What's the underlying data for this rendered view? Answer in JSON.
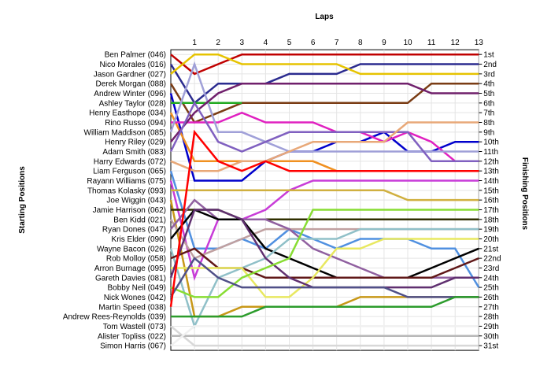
{
  "chart_data": {
    "type": "line",
    "x_title": "Laps",
    "left_title": "Starting Positions",
    "right_title": "Finishing Positions",
    "laps": [
      1,
      2,
      3,
      4,
      5,
      6,
      7,
      8,
      9,
      10,
      11,
      12,
      13
    ],
    "drivers": [
      "Ben Palmer (046)",
      "Nico Morales (016)",
      "Jason Gardner (027)",
      "Derek Morgan (088)",
      "Andrew Winter (096)",
      "Ashley Taylor (028)",
      "Henry Easthope (034)",
      "Rino Russo (094)",
      "William Maddison (085)",
      "Henry Riley (029)",
      "Adam Smith (083)",
      "Harry Edwards (072)",
      "Liam Ferguson (065)",
      "Rayann Williams (075)",
      "Thomas Kolasky (093)",
      "Joe Wiggin (043)",
      "Jamie Harrison (062)",
      "Ben Kidd (021)",
      "Ryan Dones (047)",
      "Kris Elder (090)",
      "Wayne Bacon (026)",
      "Rob Molloy (058)",
      "Arron Burnage (095)",
      "Gareth Davies (081)",
      "Bobby Neil (049)",
      "Nick Wones (042)",
      "Martin Speed (038)",
      "Andrew Rees-Reynolds (039)",
      "Tom Wastell (073)",
      "Alister Topliss (022)",
      "Simon Harris (067)"
    ],
    "finishing_labels": [
      "1st",
      "2nd",
      "3rd",
      "4th",
      "5th",
      "6th",
      "7th",
      "8th",
      "9th",
      "10th",
      "11th",
      "12th",
      "13th",
      "14th",
      "15th",
      "16th",
      "17th",
      "18th",
      "19th",
      "20th",
      "21st",
      "22nd",
      "23rd",
      "24th",
      "25th",
      "26th",
      "27th",
      "28th",
      "29th",
      "30th",
      "31st"
    ],
    "series": [
      {
        "color": "#c00000",
        "positions": [
          1,
          3,
          2,
          1,
          1,
          1,
          1,
          1,
          1,
          1,
          1,
          1,
          1,
          1
        ]
      },
      {
        "color": "#2b2b8f",
        "positions": [
          2,
          6,
          4,
          4,
          4,
          3,
          3,
          3,
          2,
          2,
          2,
          2,
          2,
          2
        ]
      },
      {
        "color": "#e6c300",
        "positions": [
          3,
          1,
          1,
          2,
          2,
          2,
          2,
          2,
          3,
          3,
          3,
          3,
          3,
          3
        ]
      },
      {
        "color": "#7a3c14",
        "positions": [
          4,
          8,
          7,
          6,
          6,
          6,
          6,
          6,
          6,
          6,
          6,
          4,
          4,
          4
        ]
      },
      {
        "color": "#0000cc",
        "positions": [
          5,
          14,
          14,
          14,
          12,
          11,
          11,
          10,
          10,
          9,
          11,
          11,
          10,
          10
        ]
      },
      {
        "color": "#22aa22",
        "positions": [
          6,
          6,
          6,
          6
        ]
      },
      {
        "color": "#f09020",
        "positions": [
          7,
          12,
          12,
          12,
          12,
          12,
          12,
          13,
          13,
          13,
          13,
          13,
          13,
          13
        ]
      },
      {
        "color": "#e020c0",
        "positions": [
          8,
          8,
          8,
          7,
          8,
          8,
          8,
          9,
          9,
          10,
          9,
          10,
          12,
          12
        ]
      },
      {
        "color": "#a0a0d8",
        "positions": [
          9,
          2,
          9,
          9,
          10,
          11,
          11,
          11,
          11,
          11,
          11,
          11,
          11,
          11
        ]
      },
      {
        "color": "#70206c",
        "positions": [
          10,
          7,
          5,
          4,
          4,
          4,
          4,
          4,
          4,
          4,
          4,
          5,
          5,
          5
        ]
      },
      {
        "color": "#8060c0",
        "positions": [
          11,
          6,
          10,
          11,
          10,
          9,
          9,
          9,
          9,
          9,
          9,
          12,
          12,
          12
        ]
      },
      {
        "color": "#e8a878",
        "positions": [
          12,
          13,
          13,
          12,
          12,
          11,
          10,
          10,
          10,
          10,
          8,
          8,
          8,
          8
        ]
      },
      {
        "color": "#5090e0",
        "positions": [
          13,
          21,
          21,
          20,
          21,
          19,
          20,
          21,
          20,
          20,
          20,
          21,
          21,
          25
        ]
      },
      {
        "color": "#c83cd8",
        "positions": [
          14,
          24,
          18,
          18,
          17,
          15,
          14,
          14,
          14,
          14,
          14,
          14,
          14,
          14
        ]
      },
      {
        "color": "#d0b040",
        "positions": [
          15,
          15,
          15,
          15,
          15,
          15,
          15,
          15,
          15,
          15,
          16,
          16,
          16,
          16
        ]
      },
      {
        "color": "#c89818",
        "positions": [
          16,
          28,
          28,
          27,
          27,
          27,
          27,
          27,
          26,
          26,
          26,
          26,
          26,
          26
        ]
      },
      {
        "color": "#303000",
        "positions": [
          17,
          17,
          17,
          18,
          18,
          18,
          18,
          18,
          18,
          18,
          18,
          18,
          18,
          18
        ]
      },
      {
        "color": "#c0a0a0",
        "positions": [
          18,
          22,
          21,
          20,
          19,
          19,
          19,
          19,
          19,
          19,
          19,
          19,
          19,
          19
        ]
      },
      {
        "color": "#9060a0",
        "positions": [
          19,
          16,
          18,
          18,
          18,
          19,
          21,
          22,
          23,
          24,
          24,
          24,
          24,
          24
        ]
      },
      {
        "color": "#000000",
        "positions": [
          20,
          17,
          18,
          18,
          21,
          22,
          23,
          24,
          24,
          24,
          24,
          23,
          22,
          21
        ]
      },
      {
        "color": "#90c0c8",
        "positions": [
          21,
          29,
          24,
          23,
          22,
          20,
          20,
          20,
          19,
          19,
          19,
          19,
          19,
          19
        ]
      },
      {
        "color": "#601818",
        "positions": [
          22,
          21,
          23,
          23,
          24,
          24,
          24,
          24,
          24,
          24,
          24,
          24,
          23,
          22
        ]
      },
      {
        "color": "#e8e860",
        "positions": [
          23,
          23,
          23,
          23,
          26,
          26,
          24,
          21,
          21,
          20,
          20,
          20,
          20,
          20
        ]
      },
      {
        "color": "#603070",
        "positions": [
          24,
          17,
          17,
          18,
          22,
          24,
          25,
          25,
          25,
          25,
          25,
          25,
          24,
          24
        ]
      },
      {
        "color": "#88dd33",
        "positions": [
          25,
          26,
          26,
          24,
          23,
          22,
          17,
          17,
          17,
          17,
          17,
          17,
          17,
          17
        ]
      },
      {
        "color": "#505088",
        "positions": [
          26,
          22,
          24,
          25,
          25,
          25,
          25,
          25,
          25,
          25,
          26,
          26,
          26,
          26
        ]
      },
      {
        "color": "#ff0000",
        "positions": [
          27,
          9,
          12,
          13,
          12,
          13,
          13,
          13,
          13,
          13,
          13,
          13,
          13,
          13
        ]
      },
      {
        "color": "#2c9c2c",
        "positions": [
          28,
          28,
          28,
          28,
          27,
          27,
          27,
          27,
          27,
          27,
          27,
          27,
          26,
          26
        ]
      },
      {
        "color": "#d8d8d8",
        "positions": [
          29,
          31,
          31,
          31,
          31,
          31,
          31,
          31,
          31,
          31,
          31,
          31,
          31,
          31
        ]
      },
      {
        "color": "#b8b8b8",
        "positions": [
          30,
          30,
          30,
          30,
          30,
          30,
          30,
          30,
          30,
          30,
          30,
          30,
          30,
          30
        ]
      },
      {
        "color": "#f0f0f0",
        "positions": [
          31,
          29,
          29,
          29,
          29,
          29,
          29,
          29,
          29,
          29,
          29,
          29,
          29,
          29
        ]
      }
    ]
  }
}
